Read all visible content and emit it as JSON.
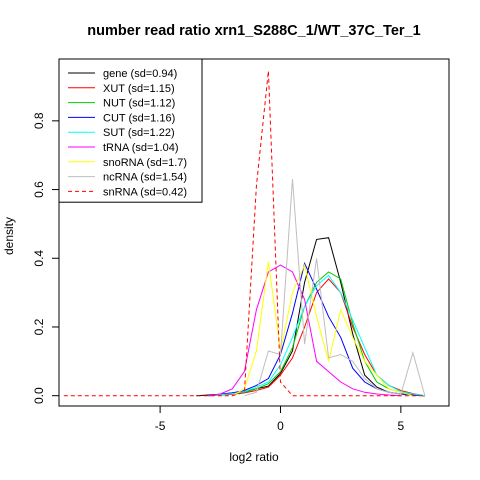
{
  "chart_data": {
    "type": "line",
    "title": "number read ratio xrn1_S288C_1/WT_37C_Ter_1",
    "xlabel": "log2 ratio",
    "ylabel": "density",
    "xlim": [
      -9.2,
      7.0
    ],
    "ylim": [
      -0.03,
      0.98
    ],
    "xticks": [
      -5,
      0,
      5
    ],
    "xtick_labels": [
      "-5",
      "0",
      "5"
    ],
    "yticks": [
      0.0,
      0.2,
      0.4,
      0.6,
      0.8
    ],
    "ytick_labels": [
      "0.0",
      "0.2",
      "0.4",
      "0.6",
      "0.8"
    ],
    "legend_position": "top-left",
    "grid": false,
    "series": [
      {
        "name": "gene (sd=0.94)",
        "color": "#000000",
        "dash": false,
        "x": [
          -3.5,
          -3.0,
          -2.5,
          -2.0,
          -1.5,
          -1.0,
          -0.5,
          0.0,
          0.5,
          1.0,
          1.5,
          2.0,
          2.5,
          3.0,
          3.5,
          4.0,
          4.5,
          5.0,
          5.5,
          6.0
        ],
        "y": [
          0.0,
          0.002,
          0.004,
          0.008,
          0.012,
          0.02,
          0.028,
          0.065,
          0.13,
          0.33,
          0.455,
          0.46,
          0.33,
          0.18,
          0.06,
          0.025,
          0.01,
          0.005,
          0.002,
          0.0
        ]
      },
      {
        "name": "XUT (sd=1.15)",
        "color": "#ff0000",
        "dash": false,
        "x": [
          -3.0,
          -2.5,
          -2.0,
          -1.5,
          -1.0,
          -0.5,
          0.0,
          0.5,
          1.0,
          1.5,
          2.0,
          2.5,
          3.0,
          3.5,
          4.0,
          4.5,
          5.0,
          5.5,
          6.0
        ],
        "y": [
          0.0,
          0.002,
          0.004,
          0.008,
          0.015,
          0.025,
          0.06,
          0.11,
          0.2,
          0.3,
          0.34,
          0.3,
          0.2,
          0.12,
          0.06,
          0.03,
          0.015,
          0.006,
          0.0
        ]
      },
      {
        "name": "NUT (sd=1.12)",
        "color": "#00cd00",
        "dash": false,
        "x": [
          -3.0,
          -2.5,
          -2.0,
          -1.5,
          -1.0,
          -0.5,
          0.0,
          0.5,
          1.0,
          1.5,
          2.0,
          2.5,
          3.0,
          3.5,
          4.0,
          4.5,
          5.0,
          5.5,
          6.0
        ],
        "y": [
          0.0,
          0.003,
          0.006,
          0.01,
          0.02,
          0.035,
          0.07,
          0.14,
          0.26,
          0.33,
          0.36,
          0.34,
          0.21,
          0.1,
          0.04,
          0.02,
          0.01,
          0.004,
          0.0
        ]
      },
      {
        "name": "CUT (sd=1.16)",
        "color": "#0000ff",
        "dash": false,
        "x": [
          -3.0,
          -2.5,
          -2.0,
          -1.5,
          -1.0,
          -0.5,
          0.0,
          0.5,
          1.0,
          1.5,
          2.0,
          2.5,
          3.0,
          3.5,
          4.0,
          4.5,
          5.0,
          5.5,
          6.0
        ],
        "y": [
          0.0,
          0.004,
          0.008,
          0.015,
          0.03,
          0.05,
          0.12,
          0.24,
          0.385,
          0.31,
          0.23,
          0.17,
          0.08,
          0.04,
          0.02,
          0.01,
          0.005,
          0.002,
          0.0
        ]
      },
      {
        "name": "SUT (sd=1.22)",
        "color": "#00ffff",
        "dash": false,
        "x": [
          -3.0,
          -2.5,
          -2.0,
          -1.5,
          -1.0,
          -0.5,
          0.0,
          0.5,
          1.0,
          1.5,
          2.0,
          2.5,
          3.0,
          3.5,
          4.0,
          4.5,
          5.0,
          5.5,
          6.0
        ],
        "y": [
          0.0,
          0.003,
          0.006,
          0.012,
          0.025,
          0.04,
          0.09,
          0.17,
          0.26,
          0.32,
          0.35,
          0.3,
          0.22,
          0.14,
          0.06,
          0.03,
          0.012,
          0.005,
          0.0
        ]
      },
      {
        "name": "tRNA (sd=1.04)",
        "color": "#ff00ff",
        "dash": false,
        "x": [
          -3.0,
          -2.5,
          -2.0,
          -1.5,
          -1.0,
          -0.5,
          0.0,
          0.5,
          1.0,
          1.5,
          2.0,
          2.5,
          3.0,
          3.5,
          4.0,
          4.5,
          5.0
        ],
        "y": [
          0.0,
          0.005,
          0.02,
          0.07,
          0.25,
          0.36,
          0.38,
          0.36,
          0.28,
          0.1,
          0.07,
          0.04,
          0.02,
          0.01,
          0.005,
          0.002,
          0.0
        ]
      },
      {
        "name": "snoRNA (sd=1.7)",
        "color": "#ffff00",
        "dash": false,
        "x": [
          -2.0,
          -1.5,
          -1.0,
          -0.5,
          0.0,
          0.5,
          1.0,
          1.5,
          2.0,
          2.5,
          3.0,
          3.5,
          4.0,
          4.5,
          5.0,
          5.5
        ],
        "y": [
          0.0,
          0.02,
          0.13,
          0.39,
          0.13,
          0.3,
          0.38,
          0.23,
          0.1,
          0.25,
          0.17,
          0.1,
          0.06,
          0.02,
          0.01,
          0.0
        ]
      },
      {
        "name": "ncRNA (sd=1.54)",
        "color": "#bebebe",
        "dash": false,
        "x": [
          -1.5,
          -1.0,
          -0.5,
          0.0,
          0.5,
          1.0,
          1.5,
          2.0,
          2.5,
          3.0,
          3.5,
          4.0,
          4.5,
          5.0,
          5.5,
          6.0
        ],
        "y": [
          0.0,
          0.01,
          0.13,
          0.12,
          0.63,
          0.15,
          0.4,
          0.11,
          0.12,
          0.1,
          0.05,
          0.02,
          0.01,
          0.005,
          0.125,
          0.0
        ]
      },
      {
        "name": "snRNA (sd=0.42)",
        "color": "#ff0000",
        "dash": true,
        "x": [
          -9.0,
          -2.0,
          -1.5,
          -1.0,
          -0.5,
          0.0,
          0.5,
          1.0,
          1.5,
          6.0
        ],
        "y": [
          0.0,
          0.0,
          0.01,
          0.61,
          0.945,
          0.04,
          0.0,
          0.0,
          0.0,
          0.0
        ]
      }
    ]
  }
}
